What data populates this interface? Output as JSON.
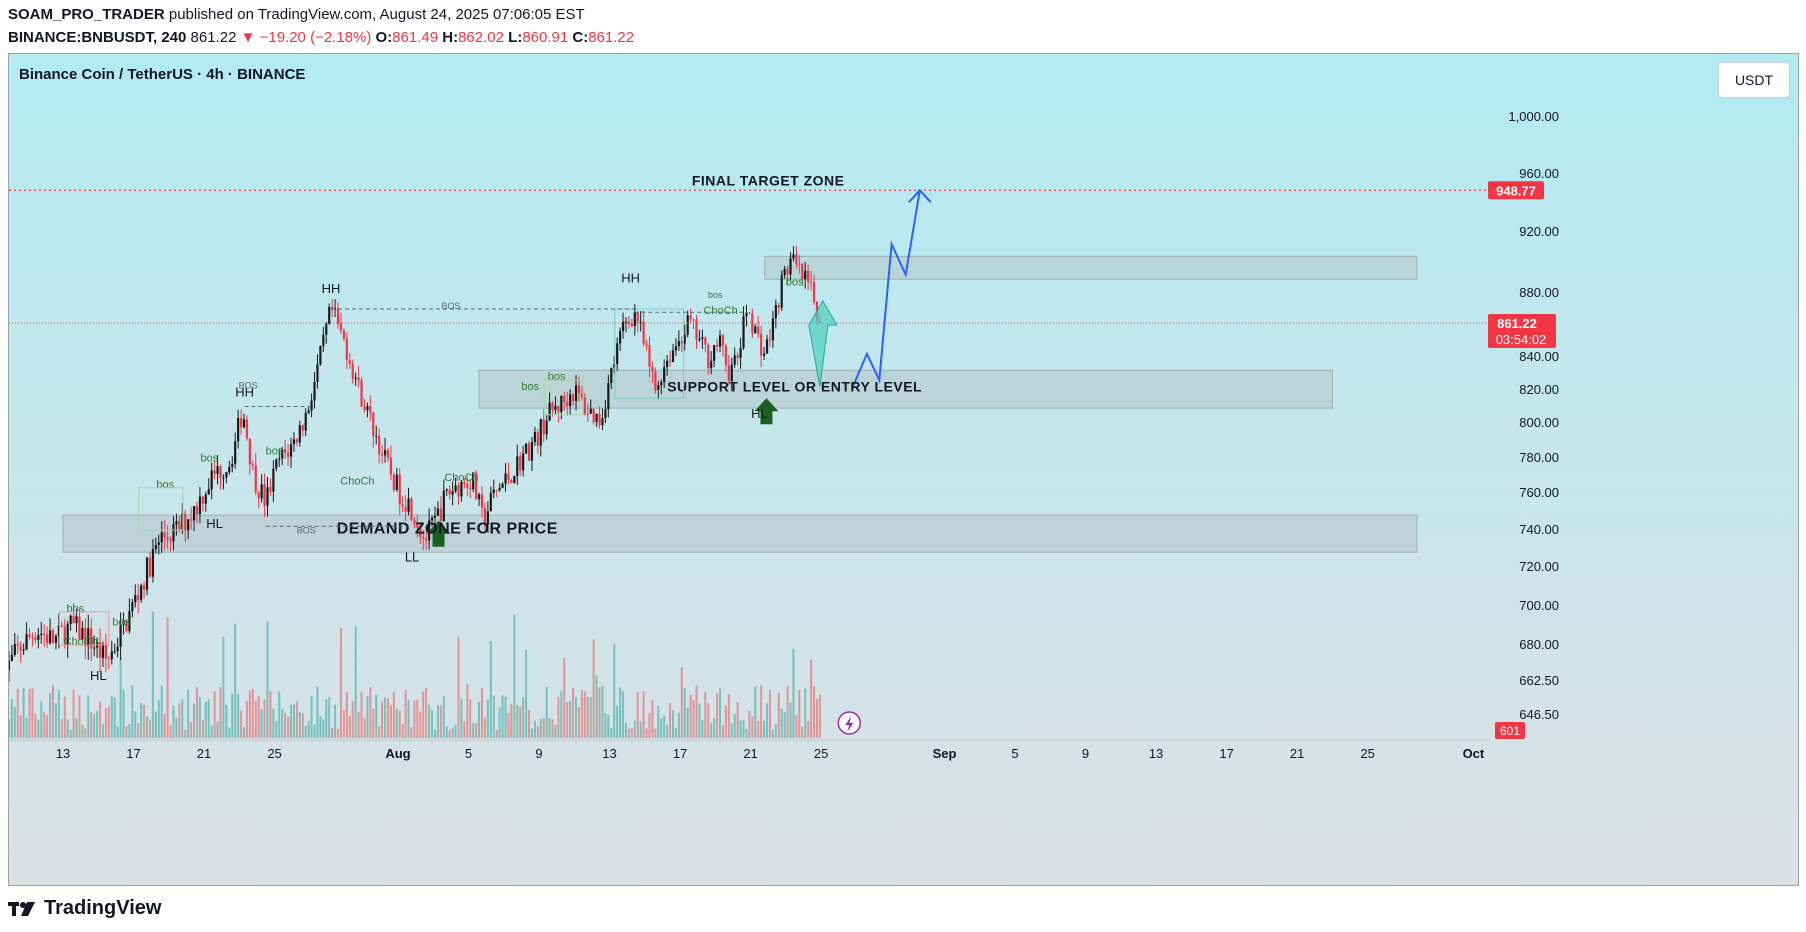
{
  "header": {
    "author": "SOAM_PRO_TRADER",
    "published_text": "published on TradingView.com, August 24, 2025 07:06:05 EST",
    "symbol_line": "BINANCE:BNBUSDT, 240",
    "last": "861.22",
    "change": "▼ −19.20 (−2.18%)",
    "o_label": "O:",
    "o_value": "861.49",
    "h_label": "H:",
    "h_value": "862.02",
    "l_label": "L:",
    "l_value": "860.91",
    "c_label": "C:",
    "c_value": "861.22"
  },
  "chart_title": "Binance Coin / TetherUS · 4h · BINANCE",
  "currency_button": "USDT",
  "footer": {
    "brand": "TradingView"
  },
  "colors": {
    "up": "#089981",
    "down": "#f23645",
    "bg_top": "#b2ebf2",
    "bg_bottom": "#dde1e4",
    "zone": "#b5c4c8",
    "path": "#2962ff",
    "target_line": "#f23645"
  },
  "chart_data": {
    "type": "candlestick",
    "symbol": "BINANCE:BNBUSDT",
    "timeframe": "4h",
    "y_ticks": [
      1000,
      960,
      920,
      880,
      840,
      820,
      800,
      780,
      760,
      740,
      720,
      700,
      680,
      662.5,
      646.5
    ],
    "y_tick_labels": [
      "1,000.00",
      "960.00",
      "920.00",
      "880.00",
      "840.00",
      "820.00",
      "800.00",
      "780.00",
      "760.00",
      "740.00",
      "720.00",
      "700.00",
      "680.00",
      "662.50",
      "646.50"
    ],
    "x_ticks": [
      {
        "day": 13,
        "label": "13"
      },
      {
        "day": 17,
        "label": "17"
      },
      {
        "day": 21,
        "label": "21"
      },
      {
        "day": 25,
        "label": "25"
      },
      {
        "day": 32,
        "label": "Aug",
        "bold": true
      },
      {
        "day": 36,
        "label": "5"
      },
      {
        "day": 40,
        "label": "9"
      },
      {
        "day": 44,
        "label": "13"
      },
      {
        "day": 48,
        "label": "17"
      },
      {
        "day": 52,
        "label": "21"
      },
      {
        "day": 56,
        "label": "25"
      },
      {
        "day": 63,
        "label": "Sep",
        "bold": true
      },
      {
        "day": 67,
        "label": "5"
      },
      {
        "day": 71,
        "label": "9"
      },
      {
        "day": 75,
        "label": "13"
      },
      {
        "day": 79,
        "label": "17"
      },
      {
        "day": 83,
        "label": "21"
      },
      {
        "day": 87,
        "label": "25"
      },
      {
        "day": 93,
        "label": "Oct",
        "bold": true
      }
    ],
    "price_path": [
      [
        9.6,
        665
      ],
      [
        10.5,
        678
      ],
      [
        11.5,
        688
      ],
      [
        12.5,
        682
      ],
      [
        13.5,
        690
      ],
      [
        14.5,
        683
      ],
      [
        15.5,
        672
      ],
      [
        16.5,
        690
      ],
      [
        17.5,
        712
      ],
      [
        18.5,
        735
      ],
      [
        19.5,
        740
      ],
      [
        20.5,
        752
      ],
      [
        21.5,
        770
      ],
      [
        22.5,
        778
      ],
      [
        23.2,
        808
      ],
      [
        23.8,
        770
      ],
      [
        24.5,
        755
      ],
      [
        25.2,
        778
      ],
      [
        26.0,
        787
      ],
      [
        26.8,
        805
      ],
      [
        27.5,
        835
      ],
      [
        28.2,
        870
      ],
      [
        29.0,
        848
      ],
      [
        29.8,
        820
      ],
      [
        30.5,
        800
      ],
      [
        31.2,
        780
      ],
      [
        32.0,
        762
      ],
      [
        32.8,
        752
      ],
      [
        33.5,
        735
      ],
      [
        34.0,
        742
      ],
      [
        34.8,
        760
      ],
      [
        35.5,
        765
      ],
      [
        36.2,
        768
      ],
      [
        36.8,
        745
      ],
      [
        37.5,
        760
      ],
      [
        38.2,
        768
      ],
      [
        39.0,
        780
      ],
      [
        39.8,
        790
      ],
      [
        40.5,
        805
      ],
      [
        41.3,
        812
      ],
      [
        42.0,
        820
      ],
      [
        42.7,
        808
      ],
      [
        43.5,
        802
      ],
      [
        44.2,
        835
      ],
      [
        44.8,
        860
      ],
      [
        45.5,
        868
      ],
      [
        46.0,
        845
      ],
      [
        46.6,
        820
      ],
      [
        47.2,
        838
      ],
      [
        47.8,
        848
      ],
      [
        48.5,
        862
      ],
      [
        49.0,
        852
      ],
      [
        49.6,
        840
      ],
      [
        50.2,
        850
      ],
      [
        50.8,
        830
      ],
      [
        51.3,
        840
      ],
      [
        51.8,
        872
      ],
      [
        52.3,
        855
      ],
      [
        52.8,
        842
      ],
      [
        53.3,
        862
      ],
      [
        53.8,
        888
      ],
      [
        54.3,
        902
      ],
      [
        54.8,
        892
      ],
      [
        55.3,
        885
      ],
      [
        55.8,
        868
      ],
      [
        56.0,
        861.22
      ]
    ],
    "volume_note": "relative volume bars",
    "last_price": 861.22,
    "last_price_label": "861.22",
    "countdown": "03:54:02",
    "target_price": 948.77,
    "target_label": "948.77",
    "volume_label": "601",
    "zones": [
      {
        "name": "upper resistance zone",
        "x0": 52.8,
        "x1": 89.8,
        "y_top": 904,
        "y_bottom": 889
      },
      {
        "name": "support zone",
        "x0": 36.6,
        "x1": 85.0,
        "y_top": 832,
        "y_bottom": 809
      },
      {
        "name": "demand zone",
        "x0": 13.0,
        "x1": 89.8,
        "y_top": 748,
        "y_bottom": 728
      }
    ],
    "projection": [
      [
        57.8,
        822
      ],
      [
        58.6,
        842
      ],
      [
        59.3,
        826
      ],
      [
        60.0,
        912
      ],
      [
        60.8,
        892
      ],
      [
        61.6,
        948.77
      ]
    ],
    "annotations": [
      {
        "text": "FINAL TARGET ZONE",
        "day": 53.0,
        "price": 952,
        "size": 14
      },
      {
        "text": "SUPPORT LEVEL OR ENTRY LEVEL",
        "day": 54.5,
        "price": 819,
        "size": 14
      },
      {
        "text": "DEMAND ZONE FOR PRICE",
        "day": 34.8,
        "price": 738,
        "size": 16
      },
      {
        "text": "HH",
        "day": 28.2,
        "price": 880,
        "size": 13
      },
      {
        "text": "HH",
        "day": 23.3,
        "price": 816,
        "size": 13
      },
      {
        "text": "HH",
        "day": 45.2,
        "price": 887,
        "size": 13
      },
      {
        "text": "HL",
        "day": 21.6,
        "price": 741,
        "size": 13
      },
      {
        "text": "HL",
        "day": 15.0,
        "price": 663,
        "size": 13
      },
      {
        "text": "HL",
        "day": 52.5,
        "price": 803,
        "size": 13
      },
      {
        "text": "LL",
        "day": 32.8,
        "price": 723,
        "size": 13
      },
      {
        "text": "bos",
        "day": 16.3,
        "price": 690,
        "size": 11
      },
      {
        "text": "bos",
        "day": 13.7,
        "price": 697,
        "size": 11
      },
      {
        "text": "ChoCh",
        "day": 14.0,
        "price": 680,
        "size": 11
      },
      {
        "text": "bos",
        "day": 18.8,
        "price": 763,
        "size": 11
      },
      {
        "text": "bos",
        "day": 21.3,
        "price": 778,
        "size": 11
      },
      {
        "text": "bos",
        "day": 25.0,
        "price": 782,
        "size": 11
      },
      {
        "text": "ChoCh",
        "day": 29.7,
        "price": 765,
        "size": 11
      },
      {
        "text": "ChoCh",
        "day": 35.6,
        "price": 767,
        "size": 11
      },
      {
        "text": "bos",
        "day": 39.5,
        "price": 820,
        "size": 11
      },
      {
        "text": "bos",
        "day": 41.0,
        "price": 826,
        "size": 11
      },
      {
        "text": "bos",
        "day": 54.5,
        "price": 885,
        "size": 11
      },
      {
        "text": "ChoCh",
        "day": 50.3,
        "price": 867,
        "size": 11
      },
      {
        "text": "bos",
        "day": 50.0,
        "price": 877,
        "size": 9
      },
      {
        "text": "BOS",
        "day": 35.0,
        "price": 870,
        "size": 9
      },
      {
        "text": "BOS",
        "day": 23.5,
        "price": 821,
        "size": 9
      },
      {
        "text": "BOS",
        "day": 26.8,
        "price": 738,
        "size": 9
      }
    ]
  }
}
